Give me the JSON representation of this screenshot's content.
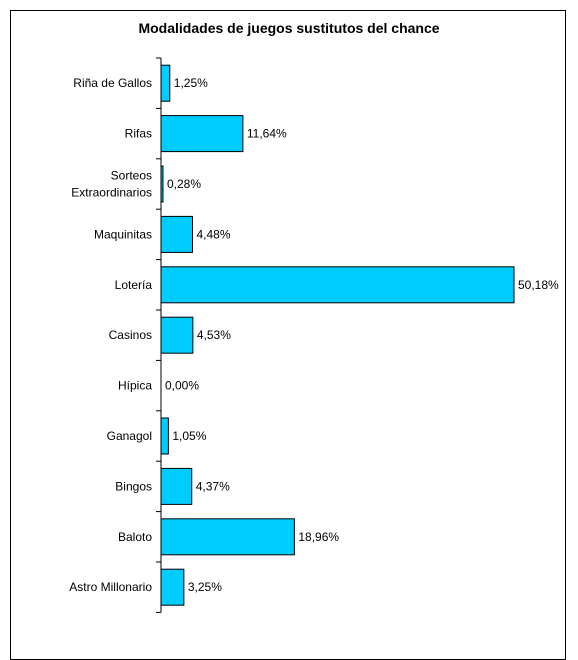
{
  "chart_data": {
    "type": "bar",
    "orientation": "horizontal",
    "title": "Modalidades de juegos sustitutos del chance",
    "categories": [
      "Riña de Gallos",
      "Rifas",
      "Sorteos Extraordinarios",
      "Maquinitas",
      "Lotería",
      "Casinos",
      "Hípica",
      "Ganagol",
      "Bingos",
      "Baloto",
      "Astro Millonario"
    ],
    "category_lines": [
      [
        "Riña de Gallos"
      ],
      [
        "Rifas"
      ],
      [
        "Sorteos",
        "Extraordinarios"
      ],
      [
        "Maquinitas"
      ],
      [
        "Lotería"
      ],
      [
        "Casinos"
      ],
      [
        "Hípica"
      ],
      [
        "Ganagol"
      ],
      [
        "Bingos"
      ],
      [
        "Baloto"
      ],
      [
        "Astro Millonario"
      ]
    ],
    "values": [
      1.25,
      11.64,
      0.28,
      4.48,
      50.18,
      4.53,
      0.0,
      1.05,
      4.37,
      18.96,
      3.25
    ],
    "value_labels": [
      "1,25%",
      "11,64%",
      "0,28%",
      "4,48%",
      "50,18%",
      "4,53%",
      "0,00%",
      "1,05%",
      "4,37%",
      "18,96%",
      "3,25%"
    ],
    "xlim": [
      0,
      50.18
    ],
    "grid": false,
    "legend": "none",
    "bar_color": "#00CCFF"
  }
}
